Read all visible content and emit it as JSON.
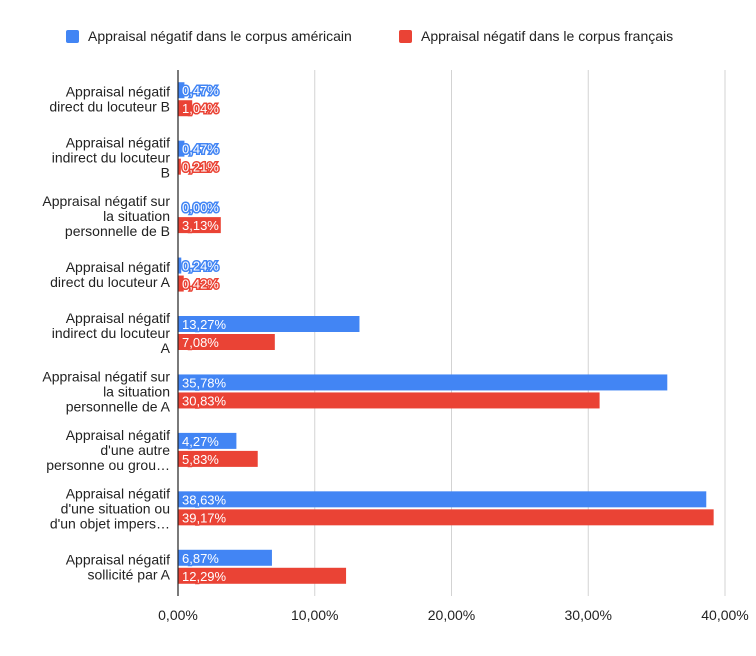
{
  "chart_data": {
    "type": "bar",
    "orientation": "horizontal",
    "legend_position": "top",
    "grid": true,
    "xlim": [
      0,
      40
    ],
    "x_ticks": [
      {
        "value": 0,
        "label": "0,00%"
      },
      {
        "value": 10,
        "label": "10,00%"
      },
      {
        "value": 20,
        "label": "20,00%"
      },
      {
        "value": 30,
        "label": "30,00%"
      },
      {
        "value": 40,
        "label": "40,00%"
      }
    ],
    "categories": [
      [
        "Appraisal négatif",
        "direct du locuteur B"
      ],
      [
        "Appraisal négatif",
        "indirect du locuteur",
        "B"
      ],
      [
        "Appraisal négatif sur",
        "la situation",
        "personnelle de B"
      ],
      [
        "Appraisal négatif",
        "direct du locuteur A"
      ],
      [
        "Appraisal négatif",
        "indirect du locuteur",
        "A"
      ],
      [
        "Appraisal négatif sur",
        "la situation",
        "personnelle de A"
      ],
      [
        "Appraisal négatif",
        "d'une autre",
        "personne ou grou…"
      ],
      [
        "Appraisal négatif",
        "d'une situation ou",
        "d'un objet impers…"
      ],
      [
        "Appraisal négatif",
        "sollicité par A"
      ]
    ],
    "series": [
      {
        "name": "Appraisal négatif dans le corpus américain",
        "color": "#4285f4",
        "values": [
          0.47,
          0.47,
          0.0,
          0.24,
          13.27,
          35.78,
          4.27,
          38.63,
          6.87
        ],
        "labels": [
          "0,47%",
          "0,47%",
          "0,00%",
          "0,24%",
          "13,27%",
          "35,78%",
          "4,27%",
          "38,63%",
          "6,87%"
        ]
      },
      {
        "name": "Appraisal négatif dans le corpus français",
        "color": "#ea4335",
        "values": [
          1.04,
          0.21,
          3.13,
          0.42,
          7.08,
          30.83,
          5.83,
          39.17,
          12.29
        ],
        "labels": [
          "1,04%",
          "0,21%",
          "3,13%",
          "0,42%",
          "7,08%",
          "30,83%",
          "5,83%",
          "39,17%",
          "12,29%"
        ]
      }
    ]
  }
}
